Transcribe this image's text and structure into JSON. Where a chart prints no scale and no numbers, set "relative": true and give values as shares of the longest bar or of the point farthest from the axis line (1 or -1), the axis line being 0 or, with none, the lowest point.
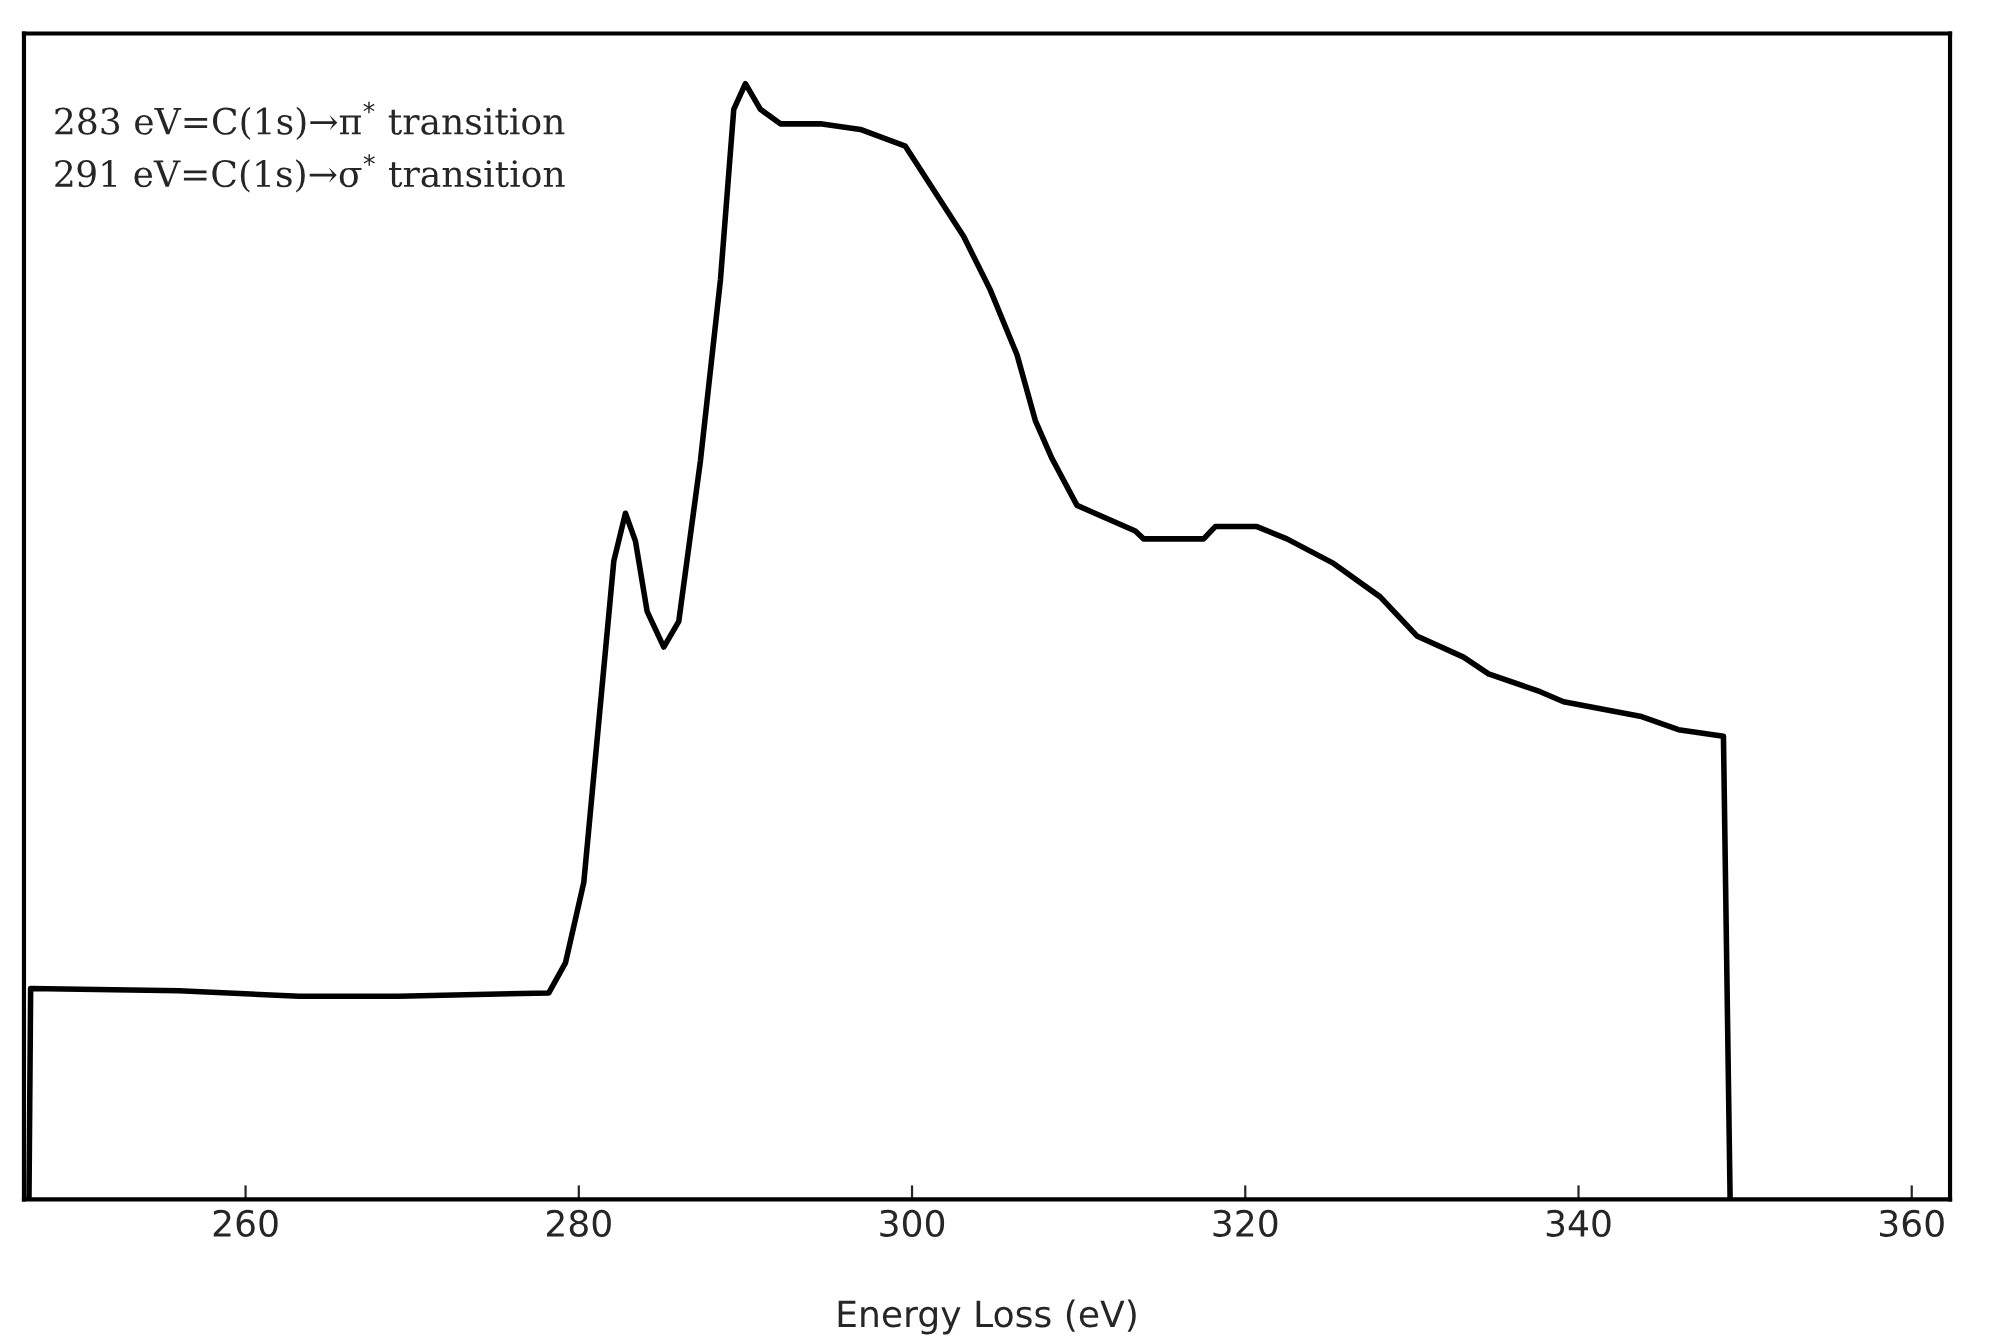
{
  "chart_data": {
    "type": "line",
    "xlabel": "Energy Loss (eV)",
    "relative": true,
    "annotations": [
      "283 eV=C(1s)→π$^{*}$ transition",
      "291 eV=C(1s)→σ$^{*}$ transition"
    ],
    "xlim": [
      246.7,
      362.3
    ],
    "xticks": [
      260,
      280,
      300,
      320,
      340,
      360
    ],
    "tick_labels": "x",
    "grid": false,
    "marker": "none",
    "line_style": "solid",
    "series": [
      {
        "color": "#000000",
        "x": [
          247.0,
          247.1,
          256.0,
          263.2,
          269.2,
          278.2,
          279.2,
          280.3,
          281.2,
          282.1,
          282.8,
          283.4,
          284.1,
          285.1,
          286.0,
          287.3,
          288.5,
          289.3,
          290.0,
          290.9,
          292.1,
          294.5,
          296.9,
          299.6,
          303.1,
          304.7,
          306.3,
          307.4,
          308.4,
          309.9,
          313.4,
          313.9,
          317.5,
          318.2,
          320.7,
          322.5,
          325.3,
          328.1,
          330.3,
          333.1,
          334.6,
          337.7,
          339.1,
          343.7,
          346.0,
          348.7,
          349.1
        ],
        "values": [
          0,
          0.189,
          0.187,
          0.182,
          0.182,
          0.185,
          0.212,
          0.284,
          0.428,
          0.572,
          0.615,
          0.59,
          0.527,
          0.495,
          0.518,
          0.662,
          0.824,
          0.977,
          1.0,
          0.977,
          0.964,
          0.964,
          0.959,
          0.944,
          0.863,
          0.815,
          0.757,
          0.698,
          0.664,
          0.622,
          0.599,
          0.592,
          0.592,
          0.603,
          0.603,
          0.592,
          0.57,
          0.54,
          0.505,
          0.486,
          0.471,
          0.455,
          0.446,
          0.433,
          0.421,
          0.415,
          0
        ]
      }
    ]
  }
}
